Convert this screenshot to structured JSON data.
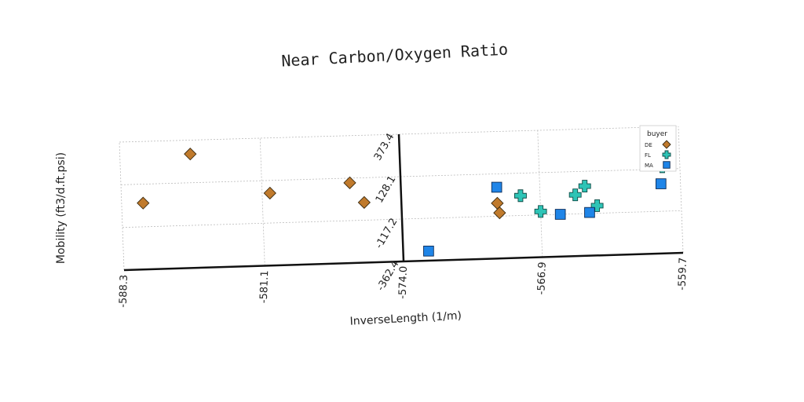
{
  "chart_data": {
    "type": "scatter",
    "title": "Near Carbon/Oxygen Ratio",
    "xlabel": "InverseLength (1/m)",
    "ylabel": "Mobility (ft3/d.ft.psi)",
    "x_ticks": [
      "-588.3",
      "-581.1",
      "-574.0",
      "-566.9",
      "-559.7"
    ],
    "y_ticks": [
      "-362.4",
      "-117.2",
      "128.1",
      "373.4"
    ],
    "xlim": [
      -588.3,
      -559.7
    ],
    "ylim": [
      -362.4,
      373.4
    ],
    "grid": true,
    "legend": {
      "title": "buyer",
      "position": "top-right"
    },
    "series": [
      {
        "name": "DE",
        "marker": "diamond",
        "color": "#c07a2c",
        "x": [
          -587.2,
          -584.7,
          -580.7,
          -576.6,
          -575.9,
          -569.1,
          -569.0
        ],
        "y": [
          19.2,
          293.6,
          55.0,
          101.0,
          -14.8,
          -42.0,
          -98.0
        ]
      },
      {
        "name": "FL",
        "marker": "plus",
        "color": "#2ec4b6",
        "x": [
          -567.9,
          -566.9,
          -565.1,
          -564.6,
          -564.0,
          -560.6
        ],
        "y": [
          -2.4,
          -97.2,
          -6.9,
          42.1,
          -73.4,
          141.6
        ]
      },
      {
        "name": "MA",
        "marker": "square",
        "color": "#1f85e8",
        "x": [
          -572.7,
          -569.1,
          -565.9,
          -564.4,
          -561.2,
          -560.7
        ],
        "y": [
          -306.8,
          50.7,
          -117.2,
          -111.5,
          211.0,
          42.8
        ]
      }
    ]
  }
}
